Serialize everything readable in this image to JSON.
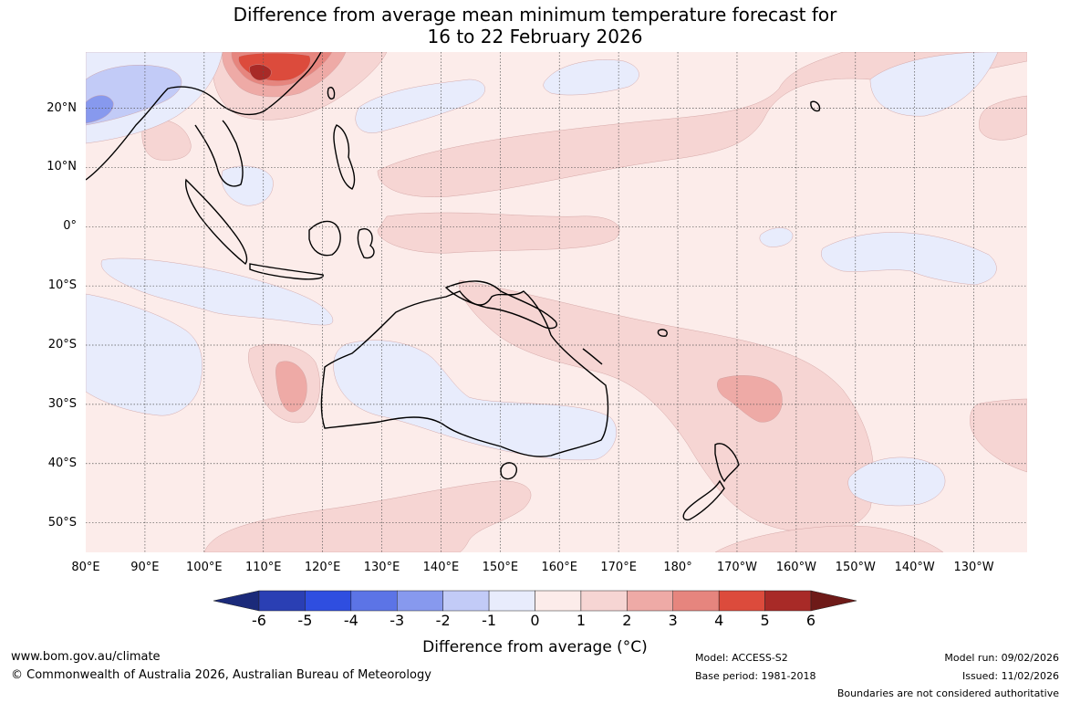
{
  "title": {
    "line1": "Difference from average mean minimum temperature forecast for",
    "line2": "16 to 22 February 2026"
  },
  "map": {
    "extent": {
      "lon_min": 80,
      "lon_max": 239,
      "lat_min": -55,
      "lat_max": 29.5
    },
    "lat_ticks": [
      {
        "lat": 20,
        "label": "20°N"
      },
      {
        "lat": 10,
        "label": "10°N"
      },
      {
        "lat": 0,
        "label": "0°"
      },
      {
        "lat": -10,
        "label": "10°S"
      },
      {
        "lat": -20,
        "label": "20°S"
      },
      {
        "lat": -30,
        "label": "30°S"
      },
      {
        "lat": -40,
        "label": "40°S"
      },
      {
        "lat": -50,
        "label": "50°S"
      }
    ],
    "lon_ticks": [
      {
        "lon": 80,
        "label": "80°E"
      },
      {
        "lon": 90,
        "label": "90°E"
      },
      {
        "lon": 100,
        "label": "100°E"
      },
      {
        "lon": 110,
        "label": "110°E"
      },
      {
        "lon": 120,
        "label": "120°E"
      },
      {
        "lon": 130,
        "label": "130°E"
      },
      {
        "lon": 140,
        "label": "140°E"
      },
      {
        "lon": 150,
        "label": "150°E"
      },
      {
        "lon": 160,
        "label": "160°E"
      },
      {
        "lon": 170,
        "label": "170°E"
      },
      {
        "lon": 180,
        "label": "180°"
      },
      {
        "lon": 190,
        "label": "170°W"
      },
      {
        "lon": 200,
        "label": "160°W"
      },
      {
        "lon": 210,
        "label": "150°W"
      },
      {
        "lon": 220,
        "label": "140°W"
      },
      {
        "lon": 230,
        "label": "130°W"
      }
    ],
    "background_category": "0 to 1",
    "regions": [
      {
        "name": "region-pos1-north-pacific",
        "category": "1 to 2"
      },
      {
        "name": "region-pos1-equatorial-pacific",
        "category": "1 to 2"
      },
      {
        "name": "region-pos1-south-pacific",
        "category": "1 to 2"
      },
      {
        "name": "region-pos1-east-pacific",
        "category": "1 to 2"
      },
      {
        "name": "region-pos1-southern-ocean",
        "category": "1 to 2"
      },
      {
        "name": "region-pos1-west-australia",
        "category": "1 to 2"
      },
      {
        "name": "region-pos1-china",
        "category": "1 to 2"
      },
      {
        "name": "region-pos1-south-china-sea",
        "category": "1 to 2"
      },
      {
        "name": "region-pos1-northeast-pacific",
        "category": "1 to 2"
      },
      {
        "name": "region-pos2-west-australia",
        "category": "2 to 3"
      },
      {
        "name": "region-pos2-south-pacific",
        "category": "2 to 3"
      },
      {
        "name": "region-pos2-china",
        "category": "2 to 3"
      },
      {
        "name": "region-pos3-china",
        "category": "3 to 4"
      },
      {
        "name": "region-pos4-china",
        "category": "4 to 5"
      },
      {
        "name": "region-pos5-china",
        "category": "5 to 6"
      },
      {
        "name": "region-neg1-indian-ocean",
        "category": "-1 to 0"
      },
      {
        "name": "region-neg1-southern-indian-ocean",
        "category": "-1 to 0"
      },
      {
        "name": "region-neg1-inland-australia",
        "category": "-1 to 0"
      },
      {
        "name": "region-neg1-tasman-sea",
        "category": "-1 to 0"
      },
      {
        "name": "region-neg1-south-pacific-east",
        "category": "-1 to 0"
      },
      {
        "name": "region-neg1-pacific-east",
        "category": "-1 to 0"
      },
      {
        "name": "region-neg1-north-pacific-east",
        "category": "-1 to 0"
      },
      {
        "name": "region-neg1-north-pacific-west",
        "category": "-1 to 0"
      },
      {
        "name": "region-neg1-philippine-sea",
        "category": "-1 to 0"
      },
      {
        "name": "region-neg1-south-china-sea",
        "category": "-1 to 0"
      },
      {
        "name": "region-neg1-himalaya",
        "category": "-1 to 0"
      },
      {
        "name": "region-neg2-himalaya",
        "category": "-2 to -1"
      },
      {
        "name": "region-neg3-himalaya",
        "category": "-3 to -2"
      }
    ]
  },
  "colorbar": {
    "bands": [
      {
        "range": "-7 to -6",
        "color": "#1b2a7a"
      },
      {
        "range": "-6 to -5",
        "color": "#2a3fb4"
      },
      {
        "range": "-5 to -4",
        "color": "#2f4ee0"
      },
      {
        "range": "-4 to -3",
        "color": "#5c74e6"
      },
      {
        "range": "-3 to -2",
        "color": "#8799ee"
      },
      {
        "range": "-2 to -1",
        "color": "#c2cbf7"
      },
      {
        "range": "-1 to 0",
        "color": "#e8ecfc"
      },
      {
        "range": "0 to 1",
        "color": "#fcecea"
      },
      {
        "range": "1 to 2",
        "color": "#f6d5d3"
      },
      {
        "range": "2 to 3",
        "color": "#eeaaa6"
      },
      {
        "range": "3 to 4",
        "color": "#e6857e"
      },
      {
        "range": "4 to 5",
        "color": "#dc4b3c"
      },
      {
        "range": "5 to 6",
        "color": "#a82a27"
      },
      {
        "range": "6 to 7",
        "color": "#6e1a18"
      }
    ],
    "ticks": [
      "-6",
      "-5",
      "-4",
      "-3",
      "-2",
      "-1",
      "0",
      "1",
      "2",
      "3",
      "4",
      "5",
      "6"
    ],
    "label": "Difference from average (°C)"
  },
  "footer": {
    "website": "www.bom.gov.au/climate",
    "copyright": "© Commonwealth of Australia 2026, Australian Bureau of Meteorology",
    "model": "Model: ACCESS-S2",
    "base_period": "Base period: 1981-2018",
    "model_run": "Model run: 09/02/2026",
    "issued": "Issued: 11/02/2026",
    "disclaimer": "Boundaries are not considered authoritative"
  }
}
